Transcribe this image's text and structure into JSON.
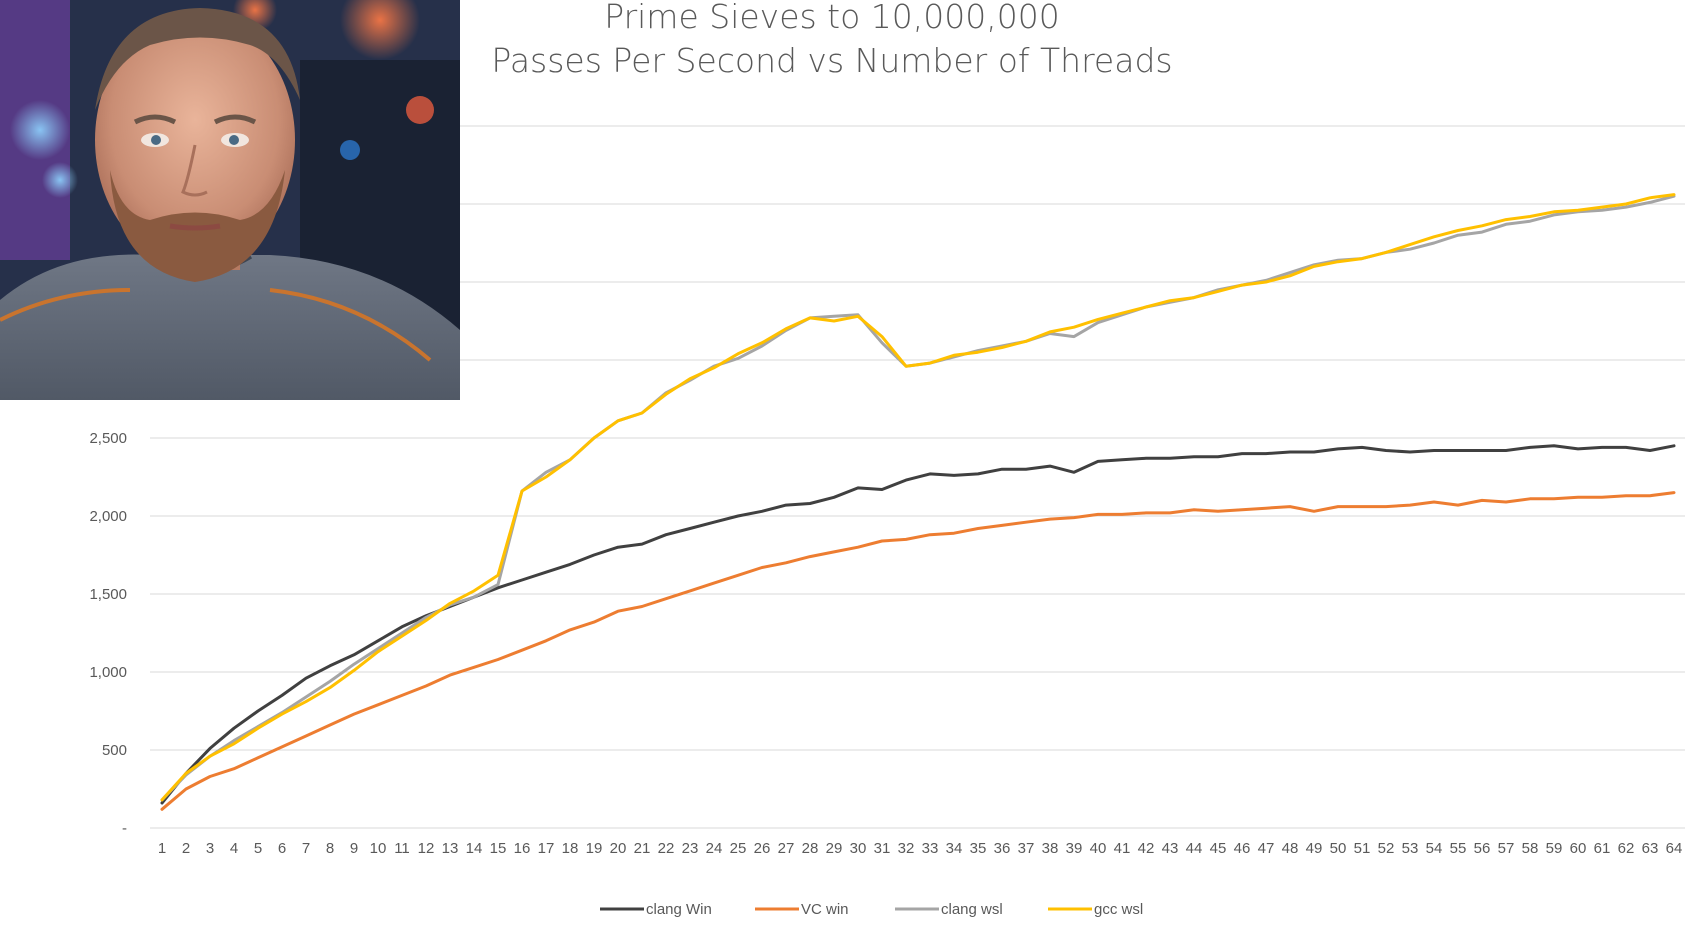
{
  "chart_data": {
    "type": "line",
    "title": "Prime Sieves  to 10,000,000",
    "subtitle": "Passes Per Second vs Number of Threads",
    "xlabel": "",
    "ylabel": "",
    "x": [
      1,
      2,
      3,
      4,
      5,
      6,
      7,
      8,
      9,
      10,
      11,
      12,
      13,
      14,
      15,
      16,
      17,
      18,
      19,
      20,
      21,
      22,
      23,
      24,
      25,
      26,
      27,
      28,
      29,
      30,
      31,
      32,
      33,
      34,
      35,
      36,
      37,
      38,
      39,
      40,
      41,
      42,
      43,
      44,
      45,
      46,
      47,
      48,
      49,
      50,
      51,
      52,
      53,
      54,
      55,
      56,
      57,
      58,
      59,
      60,
      61,
      62,
      63,
      64
    ],
    "y_ticks": [
      {
        "value": 0,
        "label": "-"
      },
      {
        "value": 500,
        "label": "500"
      },
      {
        "value": 1000,
        "label": "1,000"
      },
      {
        "value": 1500,
        "label": "1,500"
      },
      {
        "value": 2000,
        "label": "2,000"
      },
      {
        "value": 2500,
        "label": "2,500"
      },
      {
        "value": 3000,
        "label": ""
      },
      {
        "value": 3500,
        "label": ""
      },
      {
        "value": 4000,
        "label": ""
      },
      {
        "value": 4500,
        "label": ""
      }
    ],
    "ylim": [
      0,
      4500
    ],
    "grid": true,
    "legend_position": "bottom",
    "series": [
      {
        "name": "clang Win",
        "color": "#404040",
        "values": [
          160,
          350,
          510,
          640,
          750,
          850,
          960,
          1040,
          1110,
          1200,
          1290,
          1360,
          1420,
          1480,
          1540,
          1590,
          1640,
          1690,
          1750,
          1800,
          1820,
          1880,
          1920,
          1960,
          2000,
          2030,
          2070,
          2080,
          2120,
          2180,
          2170,
          2230,
          2270,
          2260,
          2270,
          2300,
          2300,
          2320,
          2280,
          2350,
          2360,
          2370,
          2370,
          2380,
          2380,
          2400,
          2400,
          2410,
          2410,
          2430,
          2440,
          2420,
          2410,
          2420,
          2420,
          2420,
          2420,
          2440,
          2450,
          2430,
          2440,
          2440,
          2420,
          2450
        ]
      },
      {
        "name": "VC win",
        "color": "#ED7D31",
        "values": [
          120,
          250,
          330,
          380,
          450,
          520,
          590,
          660,
          730,
          790,
          850,
          910,
          980,
          1030,
          1080,
          1140,
          1200,
          1270,
          1320,
          1390,
          1420,
          1470,
          1520,
          1570,
          1620,
          1670,
          1700,
          1740,
          1770,
          1800,
          1840,
          1850,
          1880,
          1890,
          1920,
          1940,
          1960,
          1980,
          1990,
          2010,
          2010,
          2020,
          2020,
          2040,
          2030,
          2040,
          2050,
          2060,
          2030,
          2060,
          2060,
          2060,
          2070,
          2090,
          2070,
          2100,
          2090,
          2110,
          2110,
          2120,
          2120,
          2130,
          2130,
          2150
        ]
      },
      {
        "name": "clang wsl",
        "color": "#A5A5A5",
        "values": [
          180,
          340,
          460,
          560,
          650,
          740,
          840,
          940,
          1050,
          1150,
          1250,
          1350,
          1430,
          1480,
          1560,
          2160,
          2280,
          2360,
          2500,
          2610,
          2660,
          2790,
          2870,
          2960,
          3010,
          3090,
          3190,
          3270,
          3280,
          3290,
          3110,
          2960,
          2980,
          3020,
          3060,
          3090,
          3120,
          3170,
          3150,
          3240,
          3290,
          3340,
          3370,
          3400,
          3450,
          3480,
          3510,
          3560,
          3610,
          3640,
          3650,
          3690,
          3710,
          3750,
          3800,
          3820,
          3870,
          3890,
          3930,
          3950,
          3960,
          3980,
          4010,
          4050
        ]
      },
      {
        "name": "gcc wsl",
        "color": "#FFC000",
        "values": [
          180,
          350,
          460,
          540,
          640,
          730,
          810,
          900,
          1010,
          1130,
          1230,
          1330,
          1440,
          1520,
          1620,
          2160,
          2250,
          2360,
          2500,
          2610,
          2660,
          2780,
          2880,
          2950,
          3040,
          3110,
          3200,
          3270,
          3250,
          3280,
          3150,
          2960,
          2980,
          3030,
          3050,
          3080,
          3120,
          3180,
          3210,
          3260,
          3300,
          3340,
          3380,
          3400,
          3440,
          3480,
          3500,
          3540,
          3600,
          3630,
          3650,
          3690,
          3740,
          3790,
          3830,
          3860,
          3900,
          3920,
          3950,
          3960,
          3980,
          4000,
          4040,
          4060
        ]
      }
    ]
  }
}
